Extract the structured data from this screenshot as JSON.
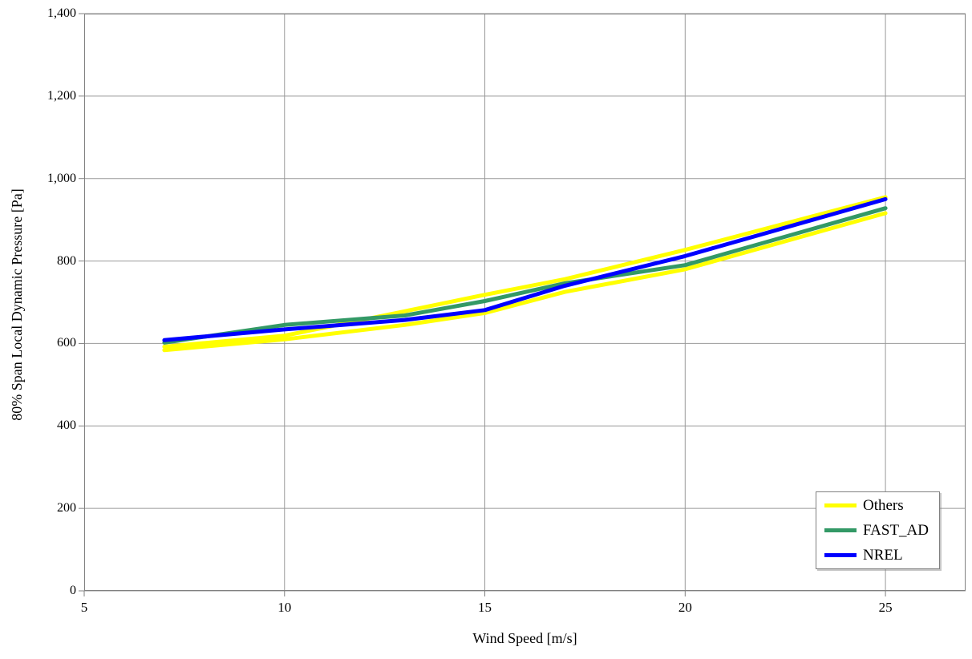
{
  "chart_data": {
    "type": "line",
    "title": "",
    "xlabel": "Wind Speed [m/s]",
    "ylabel": "80% Span Local Dynamic Pressure [Pa]",
    "xlim": [
      5,
      27
    ],
    "ylim": [
      0,
      1400
    ],
    "grid": true,
    "legend_position": "bottom-right",
    "x_ticks": [
      5,
      10,
      15,
      20,
      25
    ],
    "x_tick_labels": [
      "5",
      "10",
      "15",
      "20",
      "25"
    ],
    "y_ticks": [
      0,
      200,
      400,
      600,
      800,
      1000,
      1200,
      1400
    ],
    "y_tick_labels": [
      "0",
      "200",
      "400",
      "600",
      "800",
      "1,000",
      "1,200",
      "1,400"
    ],
    "x": [
      7,
      10,
      13,
      15,
      17,
      20,
      25
    ],
    "series": [
      {
        "name": "Others",
        "color": "#FFFF00",
        "width": 5,
        "lines": [
          [
            592,
            619,
            678,
            718,
            756,
            827,
            955
          ],
          [
            584,
            610,
            645,
            674,
            725,
            780,
            916
          ]
        ]
      },
      {
        "name": "FAST_AD",
        "color": "#339966",
        "width": 5,
        "lines": [
          [
            602,
            645,
            668,
            703,
            746,
            790,
            928
          ]
        ]
      },
      {
        "name": "NREL",
        "color": "#0000FF",
        "width": 5,
        "lines": [
          [
            608,
            634,
            657,
            681,
            740,
            812,
            950
          ]
        ]
      }
    ],
    "colors": {
      "grid": "#999999",
      "axis_border": "#808080",
      "background": "#ffffff"
    }
  }
}
